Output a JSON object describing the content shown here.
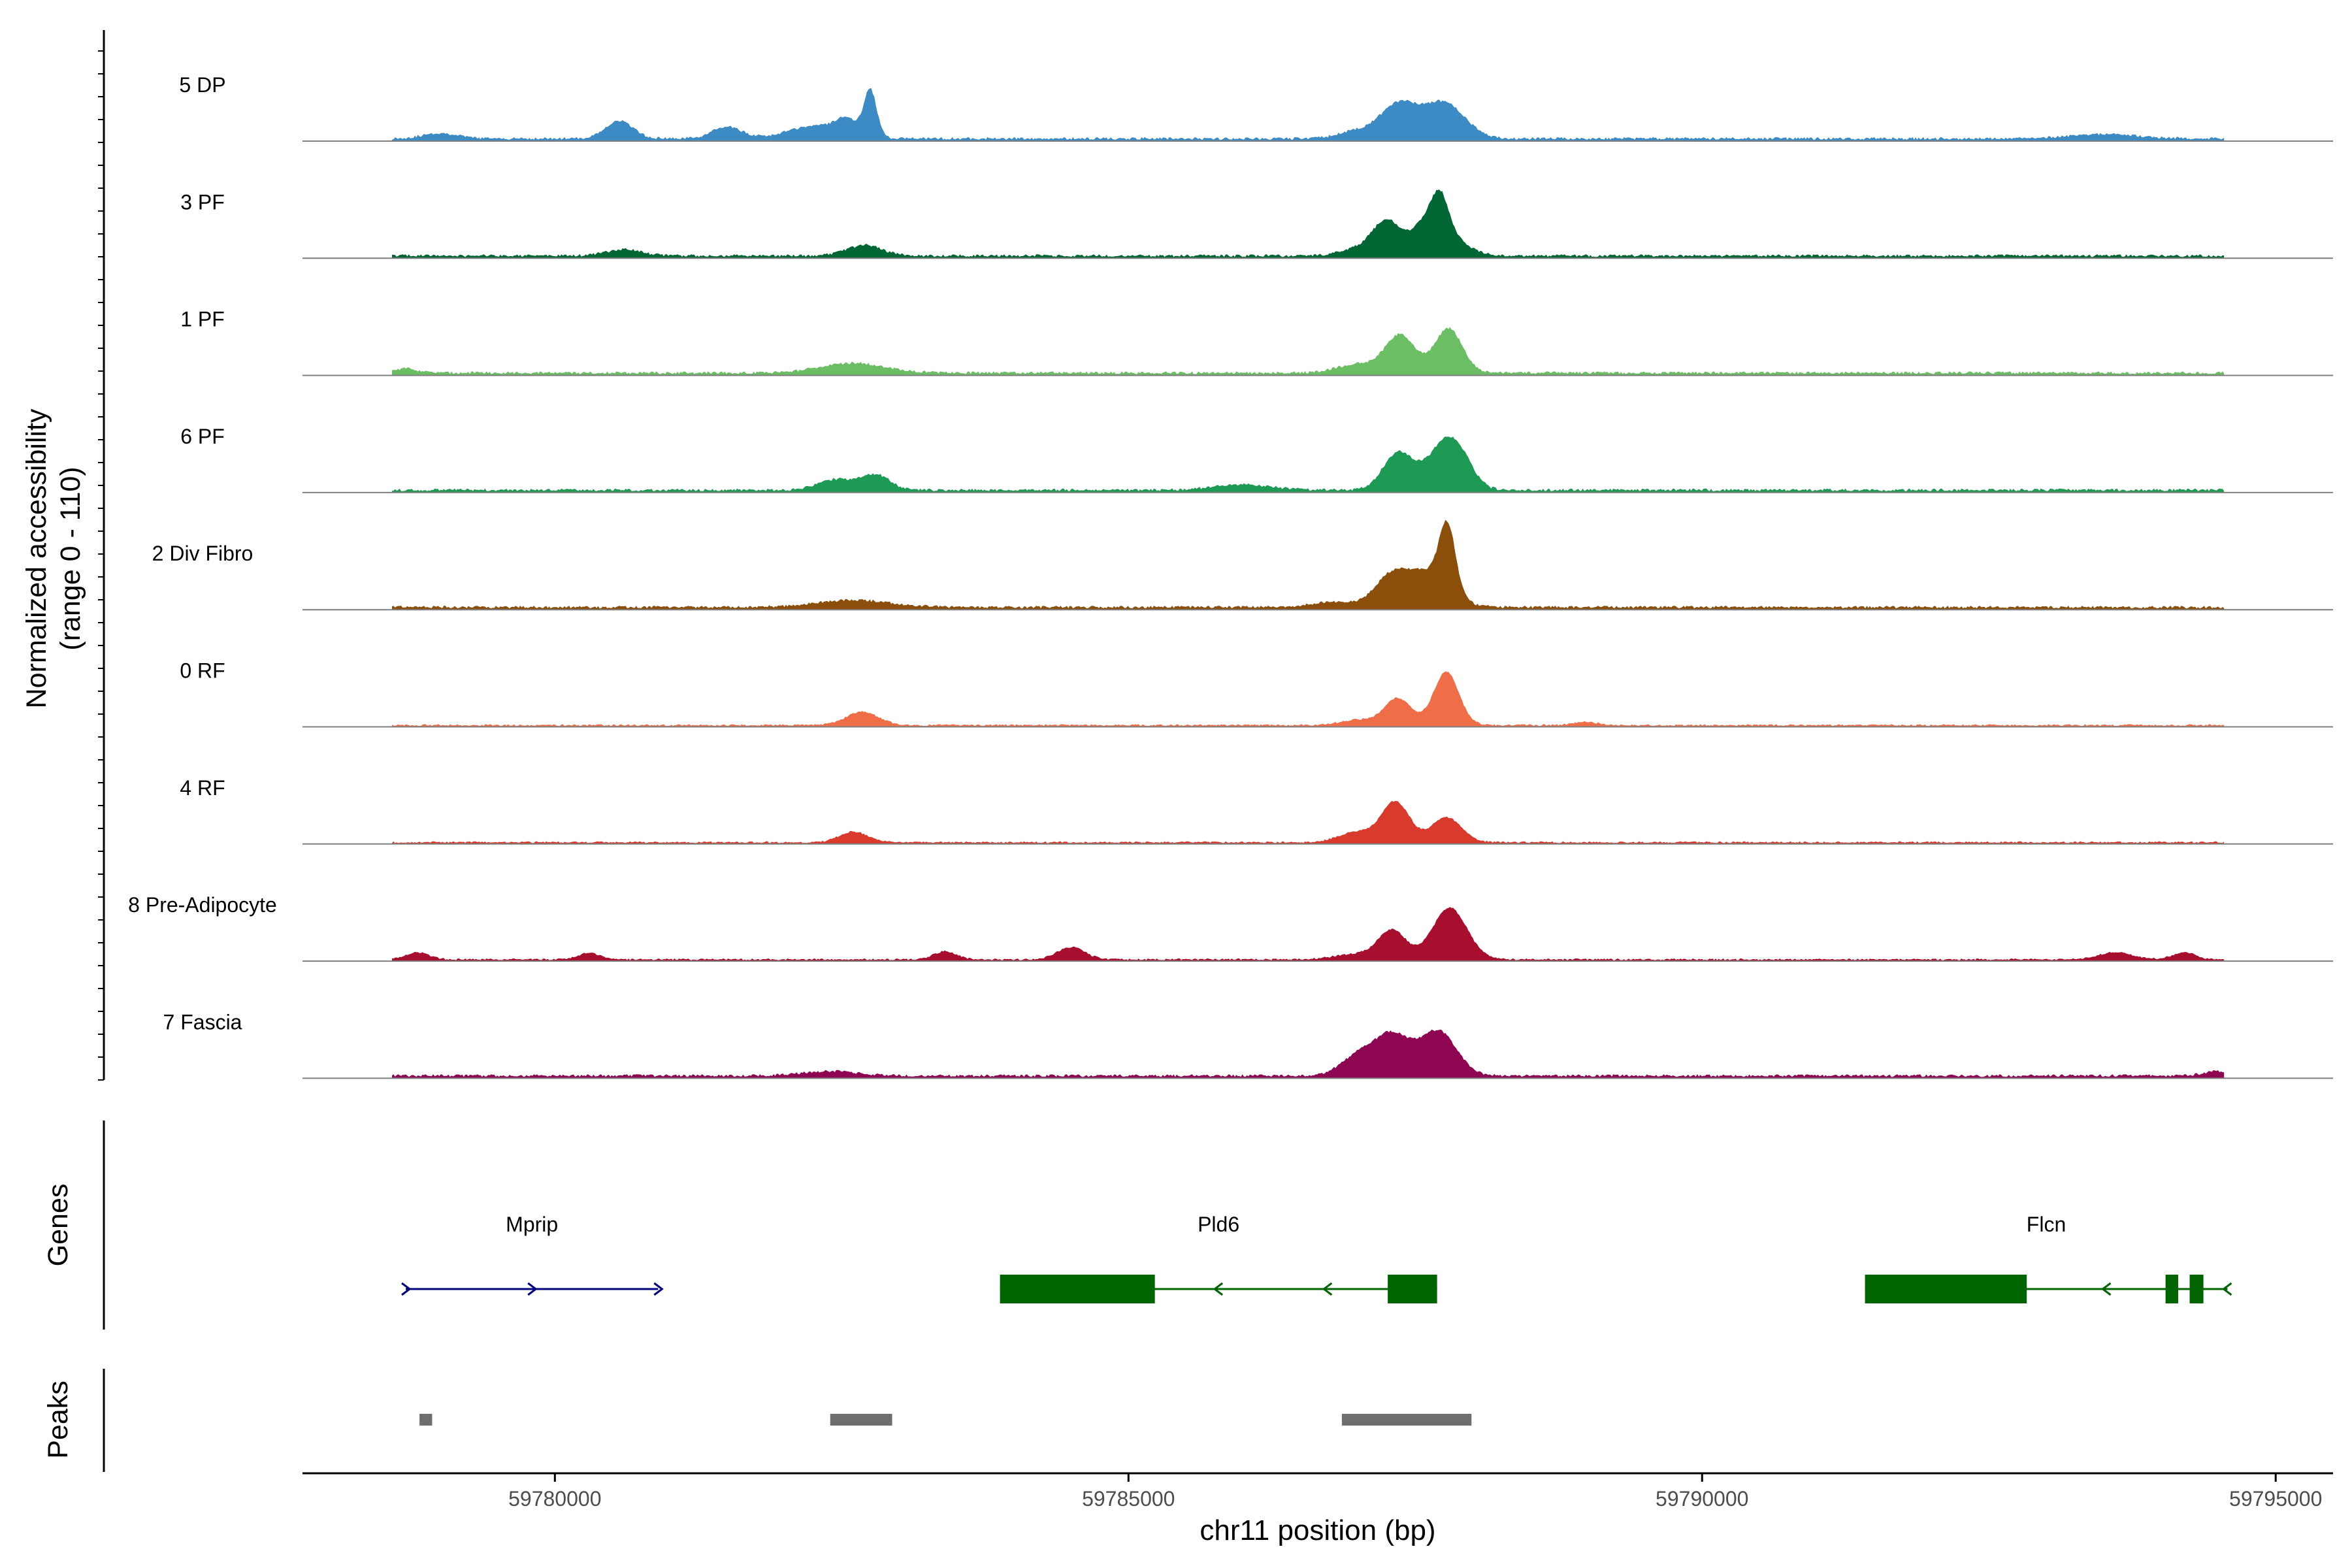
{
  "chart_data": {
    "type": "area",
    "title": "",
    "ylabel_line1": "Normalized accessibility",
    "ylabel_line2": "(range 0 - 110)",
    "xlabel": "chr11 position (bp)",
    "xlim": [
      59777800,
      59795500
    ],
    "ylim": [
      0,
      110
    ],
    "x_ticks": [
      {
        "value": 59780000,
        "label": "59780000"
      },
      {
        "value": 59785000,
        "label": "59785000"
      },
      {
        "value": 59790000,
        "label": "59790000"
      },
      {
        "value": 59795000,
        "label": "59795000"
      }
    ],
    "track_start": 59778580,
    "track_end": 59794550,
    "tracks": [
      {
        "name": "5 DP",
        "color": "#3C8BC4",
        "baseline": 3,
        "peaks": [
          [
            59779000,
            1.5,
            6
          ],
          [
            59780560,
            1.2,
            20
          ],
          [
            59781500,
            1.3,
            13
          ],
          [
            59782300,
            2.5,
            15
          ],
          [
            59782750,
            0.55,
            52
          ],
          [
            59782550,
            0.9,
            15
          ],
          [
            59786970,
            1.5,
            8
          ],
          [
            59787350,
            1.6,
            38
          ],
          [
            59787750,
            1.8,
            40
          ],
          [
            59793500,
            3,
            5
          ]
        ]
      },
      {
        "name": "3 PF",
        "color": "#006633",
        "baseline": 3,
        "peaks": [
          [
            59780600,
            1.5,
            7
          ],
          [
            59782700,
            1.5,
            12
          ],
          [
            59787000,
            1.5,
            8
          ],
          [
            59787250,
            1.2,
            38
          ],
          [
            59787600,
            1.3,
            35
          ],
          [
            59787720,
            0.7,
            35
          ],
          [
            59787800,
            1.6,
            18
          ]
        ]
      },
      {
        "name": "1 PF",
        "color": "#6BBE64",
        "baseline": 3,
        "peaks": [
          [
            59778700,
            1,
            5
          ],
          [
            59782600,
            2.8,
            11
          ],
          [
            59787000,
            1.8,
            10
          ],
          [
            59787370,
            1.3,
            42
          ],
          [
            59787790,
            1.2,
            50
          ]
        ]
      },
      {
        "name": "6 PF",
        "color": "#1D9A54",
        "baseline": 3,
        "peaks": [
          [
            59782450,
            1.6,
            12
          ],
          [
            59782800,
            1.2,
            17
          ],
          [
            59786000,
            2.5,
            6
          ],
          [
            59787350,
            1.3,
            42
          ],
          [
            59787750,
            1.5,
            48
          ],
          [
            59787900,
            1.2,
            20
          ]
        ]
      },
      {
        "name": "2 Div Fibro",
        "color": "#8B4F0B",
        "baseline": 3,
        "peaks": [
          [
            59782600,
            3.2,
            8
          ],
          [
            59786800,
            2,
            6
          ],
          [
            59787280,
            1.4,
            32
          ],
          [
            59787650,
            1.8,
            30
          ],
          [
            59787780,
            0.7,
            72
          ],
          [
            59787500,
            1.5,
            12
          ]
        ]
      },
      {
        "name": "0 RF",
        "color": "#EF6E48",
        "baseline": 2,
        "peaks": [
          [
            59782680,
            1.4,
            15
          ],
          [
            59787000,
            1.5,
            6
          ],
          [
            59787350,
            1.2,
            30
          ],
          [
            59787770,
            1.1,
            60
          ],
          [
            59788980,
            1,
            4
          ]
        ]
      },
      {
        "name": "4 RF",
        "color": "#D93A2B",
        "baseline": 2,
        "peaks": [
          [
            59782600,
            1.2,
            12
          ],
          [
            59787000,
            1.6,
            12
          ],
          [
            59787330,
            1.2,
            45
          ],
          [
            59787770,
            1.3,
            28
          ]
        ]
      },
      {
        "name": "8 Pre-Adipocyte",
        "color": "#A80E2E",
        "baseline": 2,
        "peaks": [
          [
            59778800,
            1,
            8
          ],
          [
            59780300,
            1,
            7
          ],
          [
            59783400,
            1,
            9
          ],
          [
            59784500,
            1.2,
            14
          ],
          [
            59787000,
            2,
            6
          ],
          [
            59787300,
            1.2,
            32
          ],
          [
            59787800,
            1.5,
            58
          ],
          [
            59793600,
            1.5,
            8
          ],
          [
            59794200,
            1,
            8
          ]
        ]
      },
      {
        "name": "7 Fascia",
        "color": "#8E0552",
        "baseline": 3,
        "peaks": [
          [
            59782400,
            2.5,
            5
          ],
          [
            59787000,
            1.5,
            22
          ],
          [
            59787300,
            1.5,
            45
          ],
          [
            59787700,
            1.6,
            50
          ],
          [
            59794500,
            1.2,
            5
          ]
        ]
      }
    ],
    "genes_label": "Genes",
    "genes": [
      {
        "name": "Mprip",
        "start": 59778700,
        "end": 59780900,
        "strand": "+",
        "color": "#00007F",
        "exons": []
      },
      {
        "name": "Pld6",
        "start": 59783880,
        "end": 59787690,
        "strand": "-",
        "color": "#006400",
        "exons": [
          [
            59783880,
            59785230
          ],
          [
            59787260,
            59787690
          ]
        ]
      },
      {
        "name": "Flcn",
        "start": 59791420,
        "end": 59794580,
        "strand": "-",
        "color": "#006400",
        "exons": [
          [
            59791420,
            59792830
          ],
          [
            59794040,
            59794150
          ],
          [
            59794250,
            59794370
          ]
        ]
      }
    ],
    "peaks_label": "Peaks",
    "peak_regions": [
      [
        59778820,
        59778930
      ],
      [
        59782400,
        59782940
      ],
      [
        59786860,
        59787990
      ]
    ],
    "peak_color": "#6E6E6E"
  }
}
